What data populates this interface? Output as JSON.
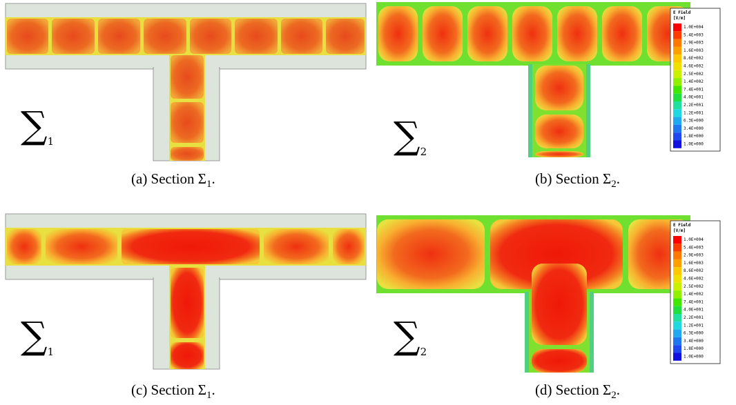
{
  "panels": [
    {
      "label_symbol": "∑",
      "label_sub": "1",
      "caption": "(a) Section Σ",
      "caption_sub": "1",
      "caption_end": "."
    },
    {
      "label_symbol": "∑",
      "label_sub": "2",
      "caption": "(b) Section Σ",
      "caption_sub": "2",
      "caption_end": "."
    },
    {
      "label_symbol": "∑",
      "label_sub": "1",
      "caption": "(c) Section Σ",
      "caption_sub": "1",
      "caption_end": "."
    },
    {
      "label_symbol": "∑",
      "label_sub": "2",
      "caption": "(d) Section Σ",
      "caption_sub": "2",
      "caption_end": "."
    }
  ],
  "legend": {
    "title": "E Field",
    "unit": "[V/m]",
    "entries": [
      "1.0E+004",
      "5.4E+003",
      "2.9E+003",
      "1.6E+003",
      "8.6E+002",
      "4.6E+002",
      "2.5E+002",
      "1.4E+002",
      "7.4E+001",
      "4.0E+001",
      "2.2E+001",
      "1.2E+001",
      "6.3E+000",
      "3.4E+000",
      "1.8E+000",
      "1.0E+000"
    ],
    "colors": [
      "#ff0000",
      "#ff3c00",
      "#ff7800",
      "#ffa000",
      "#ffc800",
      "#f0e000",
      "#c8f000",
      "#90f000",
      "#40e800",
      "#20e040",
      "#20e0a0",
      "#20d8e0",
      "#20a8f0",
      "#2078f0",
      "#2048f0",
      "#1010e0"
    ]
  }
}
